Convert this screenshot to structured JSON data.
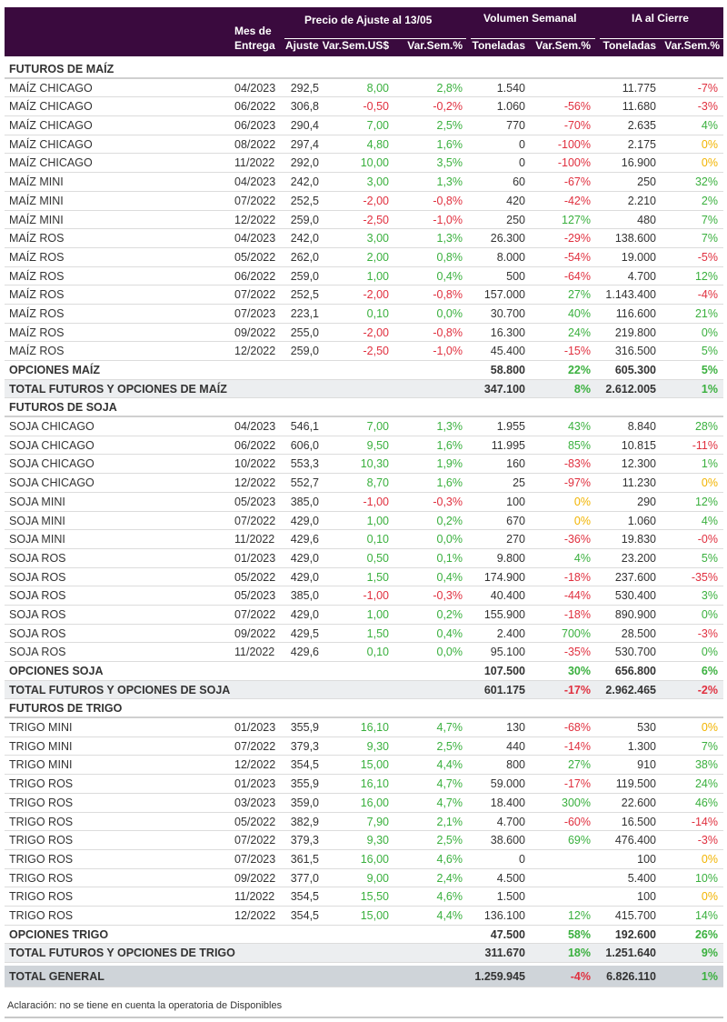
{
  "header": {
    "mes": "Mes de",
    "entrega": "Entrega",
    "precio_group": "Precio de Ajuste al 13/05",
    "volumen_group": "Volumen Semanal",
    "ia_group": "IA al Cierre",
    "cols": [
      "Ajuste",
      "Var.Sem.US$",
      "Var.Sem.%",
      "Toneladas",
      "Var.Sem.%",
      "Toneladas",
      "Var.Sem.%"
    ]
  },
  "colors": {
    "g": "#3ab03e",
    "r": "#e0303f",
    "y": "#f2b400",
    "header_bg": "#3a0a3e"
  },
  "sections": [
    {
      "title": "FUTUROS DE MAÍZ",
      "rows": [
        {
          "name": "MAÍZ CHICAGO",
          "mes": "04/2023",
          "ajuste": "292,5",
          "var_usd": "8,00",
          "var_pct": "2,8%",
          "ton": "1.540",
          "vol_var": "",
          "ia_ton": "11.775",
          "ia_var": "-7%",
          "c": "ggnr"
        },
        {
          "name": "MAÍZ CHICAGO",
          "mes": "06/2022",
          "ajuste": "306,8",
          "var_usd": "-0,50",
          "var_pct": "-0,2%",
          "ton": "1.060",
          "vol_var": "-56%",
          "ia_ton": "11.680",
          "ia_var": "-3%",
          "c": "rrrr"
        },
        {
          "name": "MAÍZ CHICAGO",
          "mes": "06/2023",
          "ajuste": "290,4",
          "var_usd": "7,00",
          "var_pct": "2,5%",
          "ton": "770",
          "vol_var": "-70%",
          "ia_ton": "2.635",
          "ia_var": "4%",
          "c": "ggrg"
        },
        {
          "name": "MAÍZ CHICAGO",
          "mes": "08/2022",
          "ajuste": "297,4",
          "var_usd": "4,80",
          "var_pct": "1,6%",
          "ton": "0",
          "vol_var": "-100%",
          "ia_ton": "2.175",
          "ia_var": "0%",
          "c": "ggry"
        },
        {
          "name": "MAÍZ CHICAGO",
          "mes": "11/2022",
          "ajuste": "292,0",
          "var_usd": "10,00",
          "var_pct": "3,5%",
          "ton": "0",
          "vol_var": "-100%",
          "ia_ton": "16.900",
          "ia_var": "0%",
          "c": "ggry"
        },
        {
          "name": "MAÍZ MINI",
          "mes": "04/2023",
          "ajuste": "242,0",
          "var_usd": "3,00",
          "var_pct": "1,3%",
          "ton": "60",
          "vol_var": "-67%",
          "ia_ton": "250",
          "ia_var": "32%",
          "c": "ggrg"
        },
        {
          "name": "MAÍZ MINI",
          "mes": "07/2022",
          "ajuste": "252,5",
          "var_usd": "-2,00",
          "var_pct": "-0,8%",
          "ton": "420",
          "vol_var": "-42%",
          "ia_ton": "2.210",
          "ia_var": "2%",
          "c": "rrrg"
        },
        {
          "name": "MAÍZ MINI",
          "mes": "12/2022",
          "ajuste": "259,0",
          "var_usd": "-2,50",
          "var_pct": "-1,0%",
          "ton": "250",
          "vol_var": "127%",
          "ia_ton": "480",
          "ia_var": "7%",
          "c": "rrgg"
        },
        {
          "name": "MAÍZ ROS",
          "mes": "04/2023",
          "ajuste": "242,0",
          "var_usd": "3,00",
          "var_pct": "1,3%",
          "ton": "26.300",
          "vol_var": "-29%",
          "ia_ton": "138.600",
          "ia_var": "7%",
          "c": "ggrg"
        },
        {
          "name": "MAÍZ ROS",
          "mes": "05/2022",
          "ajuste": "262,0",
          "var_usd": "2,00",
          "var_pct": "0,8%",
          "ton": "8.000",
          "vol_var": "-54%",
          "ia_ton": "19.000",
          "ia_var": "-5%",
          "c": "ggrr"
        },
        {
          "name": "MAÍZ ROS",
          "mes": "06/2022",
          "ajuste": "259,0",
          "var_usd": "1,00",
          "var_pct": "0,4%",
          "ton": "500",
          "vol_var": "-64%",
          "ia_ton": "4.700",
          "ia_var": "12%",
          "c": "ggrg"
        },
        {
          "name": "MAÍZ ROS",
          "mes": "07/2022",
          "ajuste": "252,5",
          "var_usd": "-2,00",
          "var_pct": "-0,8%",
          "ton": "157.000",
          "vol_var": "27%",
          "ia_ton": "1.143.400",
          "ia_var": "-4%",
          "c": "rrgr"
        },
        {
          "name": "MAÍZ ROS",
          "mes": "07/2023",
          "ajuste": "223,1",
          "var_usd": "0,10",
          "var_pct": "0,0%",
          "ton": "30.700",
          "vol_var": "40%",
          "ia_ton": "116.600",
          "ia_var": "21%",
          "c": "gggg"
        },
        {
          "name": "MAÍZ ROS",
          "mes": "09/2022",
          "ajuste": "255,0",
          "var_usd": "-2,00",
          "var_pct": "-0,8%",
          "ton": "16.300",
          "vol_var": "24%",
          "ia_ton": "219.800",
          "ia_var": "0%",
          "c": "rrgg"
        },
        {
          "name": "MAÍZ ROS",
          "mes": "12/2022",
          "ajuste": "259,0",
          "var_usd": "-2,50",
          "var_pct": "-1,0%",
          "ton": "45.400",
          "vol_var": "-15%",
          "ia_ton": "316.500",
          "ia_var": "5%",
          "c": "rrrg"
        }
      ],
      "opciones": {
        "name": "OPCIONES MAÍZ",
        "ton": "58.800",
        "vol_var": "22%",
        "ia_ton": "605.300",
        "ia_var": "5%",
        "c": "gg"
      },
      "total": {
        "name": "TOTAL FUTUROS Y OPCIONES DE MAÍZ",
        "ton": "347.100",
        "vol_var": "8%",
        "ia_ton": "2.612.005",
        "ia_var": "1%",
        "c": "gg"
      }
    },
    {
      "title": "FUTUROS DE SOJA",
      "rows": [
        {
          "name": "SOJA CHICAGO",
          "mes": "04/2023",
          "ajuste": "546,1",
          "var_usd": "7,00",
          "var_pct": "1,3%",
          "ton": "1.955",
          "vol_var": "43%",
          "ia_ton": "8.840",
          "ia_var": "28%",
          "c": "gggg"
        },
        {
          "name": "SOJA CHICAGO",
          "mes": "06/2022",
          "ajuste": "606,0",
          "var_usd": "9,50",
          "var_pct": "1,6%",
          "ton": "11.995",
          "vol_var": "85%",
          "ia_ton": "10.815",
          "ia_var": "-11%",
          "c": "gggr"
        },
        {
          "name": "SOJA CHICAGO",
          "mes": "10/2022",
          "ajuste": "553,3",
          "var_usd": "10,30",
          "var_pct": "1,9%",
          "ton": "160",
          "vol_var": "-83%",
          "ia_ton": "12.300",
          "ia_var": "1%",
          "c": "ggrg"
        },
        {
          "name": "SOJA CHICAGO",
          "mes": "12/2022",
          "ajuste": "552,7",
          "var_usd": "8,70",
          "var_pct": "1,6%",
          "ton": "25",
          "vol_var": "-97%",
          "ia_ton": "11.230",
          "ia_var": "0%",
          "c": "ggry"
        },
        {
          "name": "SOJA MINI",
          "mes": "05/2023",
          "ajuste": "385,0",
          "var_usd": "-1,00",
          "var_pct": "-0,3%",
          "ton": "100",
          "vol_var": "0%",
          "ia_ton": "290",
          "ia_var": "12%",
          "c": "rryg"
        },
        {
          "name": "SOJA MINI",
          "mes": "07/2022",
          "ajuste": "429,0",
          "var_usd": "1,00",
          "var_pct": "0,2%",
          "ton": "670",
          "vol_var": "0%",
          "ia_ton": "1.060",
          "ia_var": "4%",
          "c": "ggyg"
        },
        {
          "name": "SOJA MINI",
          "mes": "11/2022",
          "ajuste": "429,6",
          "var_usd": "0,10",
          "var_pct": "0,0%",
          "ton": "270",
          "vol_var": "-36%",
          "ia_ton": "19.830",
          "ia_var": "-0%",
          "c": "ggrr"
        },
        {
          "name": "SOJA ROS",
          "mes": "01/2023",
          "ajuste": "429,0",
          "var_usd": "0,50",
          "var_pct": "0,1%",
          "ton": "9.800",
          "vol_var": "4%",
          "ia_ton": "23.200",
          "ia_var": "5%",
          "c": "gggg"
        },
        {
          "name": "SOJA ROS",
          "mes": "05/2022",
          "ajuste": "429,0",
          "var_usd": "1,50",
          "var_pct": "0,4%",
          "ton": "174.900",
          "vol_var": "-18%",
          "ia_ton": "237.600",
          "ia_var": "-35%",
          "c": "ggrr"
        },
        {
          "name": "SOJA ROS",
          "mes": "05/2023",
          "ajuste": "385,0",
          "var_usd": "-1,00",
          "var_pct": "-0,3%",
          "ton": "40.400",
          "vol_var": "-44%",
          "ia_ton": "530.400",
          "ia_var": "3%",
          "c": "rrrg"
        },
        {
          "name": "SOJA ROS",
          "mes": "07/2022",
          "ajuste": "429,0",
          "var_usd": "1,00",
          "var_pct": "0,2%",
          "ton": "155.900",
          "vol_var": "-18%",
          "ia_ton": "890.900",
          "ia_var": "0%",
          "c": "ggrg"
        },
        {
          "name": "SOJA ROS",
          "mes": "09/2022",
          "ajuste": "429,5",
          "var_usd": "1,50",
          "var_pct": "0,4%",
          "ton": "2.400",
          "vol_var": "700%",
          "ia_ton": "28.500",
          "ia_var": "-3%",
          "c": "gggr"
        },
        {
          "name": "SOJA ROS",
          "mes": "11/2022",
          "ajuste": "429,6",
          "var_usd": "0,10",
          "var_pct": "0,0%",
          "ton": "95.100",
          "vol_var": "-35%",
          "ia_ton": "530.700",
          "ia_var": "0%",
          "c": "ggrg"
        }
      ],
      "opciones": {
        "name": "OPCIONES SOJA",
        "ton": "107.500",
        "vol_var": "30%",
        "ia_ton": "656.800",
        "ia_var": "6%",
        "c": "gg"
      },
      "total": {
        "name": "TOTAL FUTUROS Y OPCIONES DE SOJA",
        "ton": "601.175",
        "vol_var": "-17%",
        "ia_ton": "2.962.465",
        "ia_var": "-2%",
        "c": "rr"
      }
    },
    {
      "title": "FUTUROS DE TRIGO",
      "rows": [
        {
          "name": "TRIGO MINI",
          "mes": "01/2023",
          "ajuste": "355,9",
          "var_usd": "16,10",
          "var_pct": "4,7%",
          "ton": "130",
          "vol_var": "-68%",
          "ia_ton": "530",
          "ia_var": "0%",
          "c": "ggry"
        },
        {
          "name": "TRIGO MINI",
          "mes": "07/2022",
          "ajuste": "379,3",
          "var_usd": "9,30",
          "var_pct": "2,5%",
          "ton": "440",
          "vol_var": "-14%",
          "ia_ton": "1.300",
          "ia_var": "7%",
          "c": "ggrg"
        },
        {
          "name": "TRIGO MINI",
          "mes": "12/2022",
          "ajuste": "354,5",
          "var_usd": "15,00",
          "var_pct": "4,4%",
          "ton": "800",
          "vol_var": "27%",
          "ia_ton": "910",
          "ia_var": "38%",
          "c": "gggg"
        },
        {
          "name": "TRIGO ROS",
          "mes": "01/2023",
          "ajuste": "355,9",
          "var_usd": "16,10",
          "var_pct": "4,7%",
          "ton": "59.000",
          "vol_var": "-17%",
          "ia_ton": "119.500",
          "ia_var": "24%",
          "c": "ggrg"
        },
        {
          "name": "TRIGO ROS",
          "mes": "03/2023",
          "ajuste": "359,0",
          "var_usd": "16,00",
          "var_pct": "4,7%",
          "ton": "18.400",
          "vol_var": "300%",
          "ia_ton": "22.600",
          "ia_var": "46%",
          "c": "gggg"
        },
        {
          "name": "TRIGO ROS",
          "mes": "05/2022",
          "ajuste": "382,9",
          "var_usd": "7,90",
          "var_pct": "2,1%",
          "ton": "4.700",
          "vol_var": "-60%",
          "ia_ton": "16.500",
          "ia_var": "-14%",
          "c": "ggrr"
        },
        {
          "name": "TRIGO ROS",
          "mes": "07/2022",
          "ajuste": "379,3",
          "var_usd": "9,30",
          "var_pct": "2,5%",
          "ton": "38.600",
          "vol_var": "69%",
          "ia_ton": "476.400",
          "ia_var": "-3%",
          "c": "gggr"
        },
        {
          "name": "TRIGO ROS",
          "mes": "07/2023",
          "ajuste": "361,5",
          "var_usd": "16,00",
          "var_pct": "4,6%",
          "ton": "0",
          "vol_var": "",
          "ia_ton": "100",
          "ia_var": "0%",
          "c": "ggny"
        },
        {
          "name": "TRIGO ROS",
          "mes": "09/2022",
          "ajuste": "377,0",
          "var_usd": "9,00",
          "var_pct": "2,4%",
          "ton": "4.500",
          "vol_var": "",
          "ia_ton": "5.400",
          "ia_var": "10%",
          "c": "ggng"
        },
        {
          "name": "TRIGO ROS",
          "mes": "11/2022",
          "ajuste": "354,5",
          "var_usd": "15,50",
          "var_pct": "4,6%",
          "ton": "1.500",
          "vol_var": "",
          "ia_ton": "100",
          "ia_var": "0%",
          "c": "ggny"
        },
        {
          "name": "TRIGO ROS",
          "mes": "12/2022",
          "ajuste": "354,5",
          "var_usd": "15,00",
          "var_pct": "4,4%",
          "ton": "136.100",
          "vol_var": "12%",
          "ia_ton": "415.700",
          "ia_var": "14%",
          "c": "gggg"
        }
      ],
      "opciones": {
        "name": "OPCIONES TRIGO",
        "ton": "47.500",
        "vol_var": "58%",
        "ia_ton": "192.600",
        "ia_var": "26%",
        "c": "gg"
      },
      "total": {
        "name": "TOTAL FUTUROS Y OPCIONES DE TRIGO",
        "ton": "311.670",
        "vol_var": "18%",
        "ia_ton": "1.251.640",
        "ia_var": "9%",
        "c": "gg"
      }
    }
  ],
  "total_general": {
    "name": "TOTAL GENERAL",
    "ton": "1.259.945",
    "vol_var": "-4%",
    "ia_ton": "6.826.110",
    "ia_var": "1%",
    "c": "rg"
  },
  "footnote": "Aclaración: no se tiene en cuenta la operatoria de Disponibles"
}
